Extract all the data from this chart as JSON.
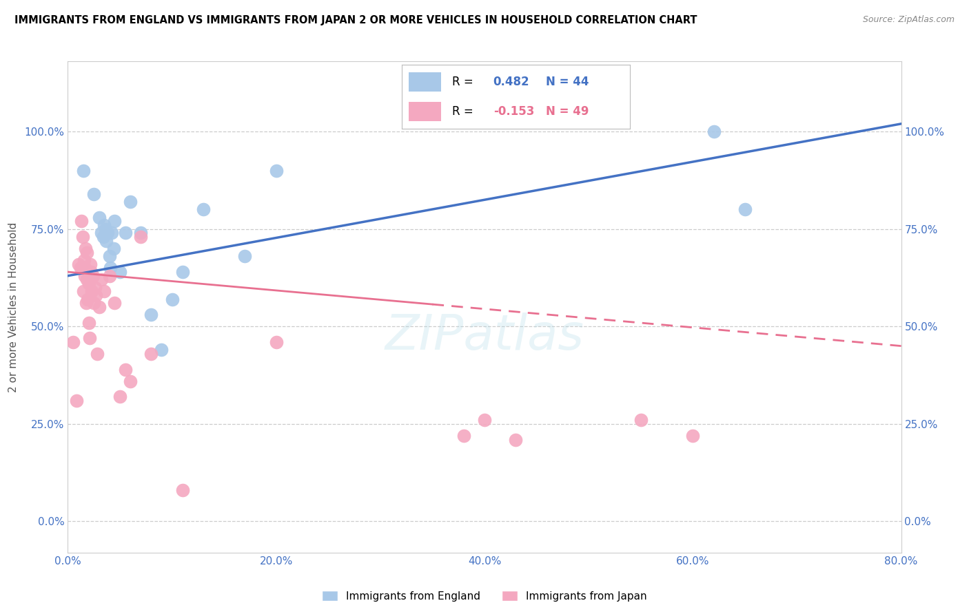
{
  "title": "IMMIGRANTS FROM ENGLAND VS IMMIGRANTS FROM JAPAN 2 OR MORE VEHICLES IN HOUSEHOLD CORRELATION CHART",
  "source": "Source: ZipAtlas.com",
  "ylabel": "2 or more Vehicles in Household",
  "xlim": [
    0.0,
    80.0
  ],
  "ylim": [
    -8.0,
    118.0
  ],
  "ytick_vals": [
    0.0,
    25.0,
    50.0,
    75.0,
    100.0
  ],
  "xtick_vals": [
    0.0,
    20.0,
    40.0,
    60.0,
    80.0
  ],
  "england_R": 0.482,
  "england_N": 44,
  "japan_R": -0.153,
  "japan_N": 49,
  "england_color": "#a8c8e8",
  "japan_color": "#f4a8c0",
  "england_line_color": "#4472c4",
  "japan_line_color": "#e87090",
  "england_trend": [
    0.0,
    63.0,
    80.0,
    102.0
  ],
  "japan_trend": [
    0.0,
    64.0,
    80.0,
    45.0
  ],
  "japan_dash_start": 35.0,
  "england_x": [
    1.5,
    2.5,
    3.0,
    3.2,
    3.4,
    3.5,
    3.6,
    3.7,
    3.8,
    4.0,
    4.1,
    4.2,
    4.4,
    4.5,
    5.0,
    5.5,
    6.0,
    7.0,
    8.0,
    9.0,
    10.0,
    11.0,
    13.0,
    17.0,
    20.0,
    62.0,
    65.0
  ],
  "england_y": [
    90.0,
    84.0,
    78.0,
    74.0,
    73.0,
    76.0,
    75.0,
    72.0,
    74.0,
    68.0,
    65.0,
    74.0,
    70.0,
    77.0,
    64.0,
    74.0,
    82.0,
    74.0,
    53.0,
    44.0,
    57.0,
    64.0,
    80.0,
    68.0,
    90.0,
    100.0,
    80.0
  ],
  "japan_x": [
    0.5,
    0.8,
    1.0,
    1.2,
    1.3,
    1.4,
    1.5,
    1.55,
    1.6,
    1.65,
    1.7,
    1.75,
    1.8,
    1.85,
    1.9,
    1.95,
    2.0,
    2.05,
    2.1,
    2.15,
    2.2,
    2.3,
    2.4,
    2.5,
    2.6,
    2.7,
    2.8,
    3.0,
    3.2,
    3.5,
    4.0,
    4.5,
    5.0,
    5.5,
    6.0,
    7.0,
    8.0,
    11.0,
    20.0,
    38.0,
    40.0,
    43.0,
    55.0,
    60.0
  ],
  "japan_y": [
    46.0,
    31.0,
    66.0,
    65.0,
    77.0,
    73.0,
    59.0,
    67.0,
    65.0,
    63.0,
    70.0,
    56.0,
    62.0,
    69.0,
    57.0,
    62.0,
    61.0,
    51.0,
    47.0,
    66.0,
    64.0,
    59.0,
    63.0,
    56.0,
    60.0,
    58.0,
    43.0,
    55.0,
    62.0,
    59.0,
    63.0,
    56.0,
    32.0,
    39.0,
    36.0,
    73.0,
    43.0,
    8.0,
    46.0,
    22.0,
    26.0,
    21.0,
    26.0,
    22.0
  ]
}
